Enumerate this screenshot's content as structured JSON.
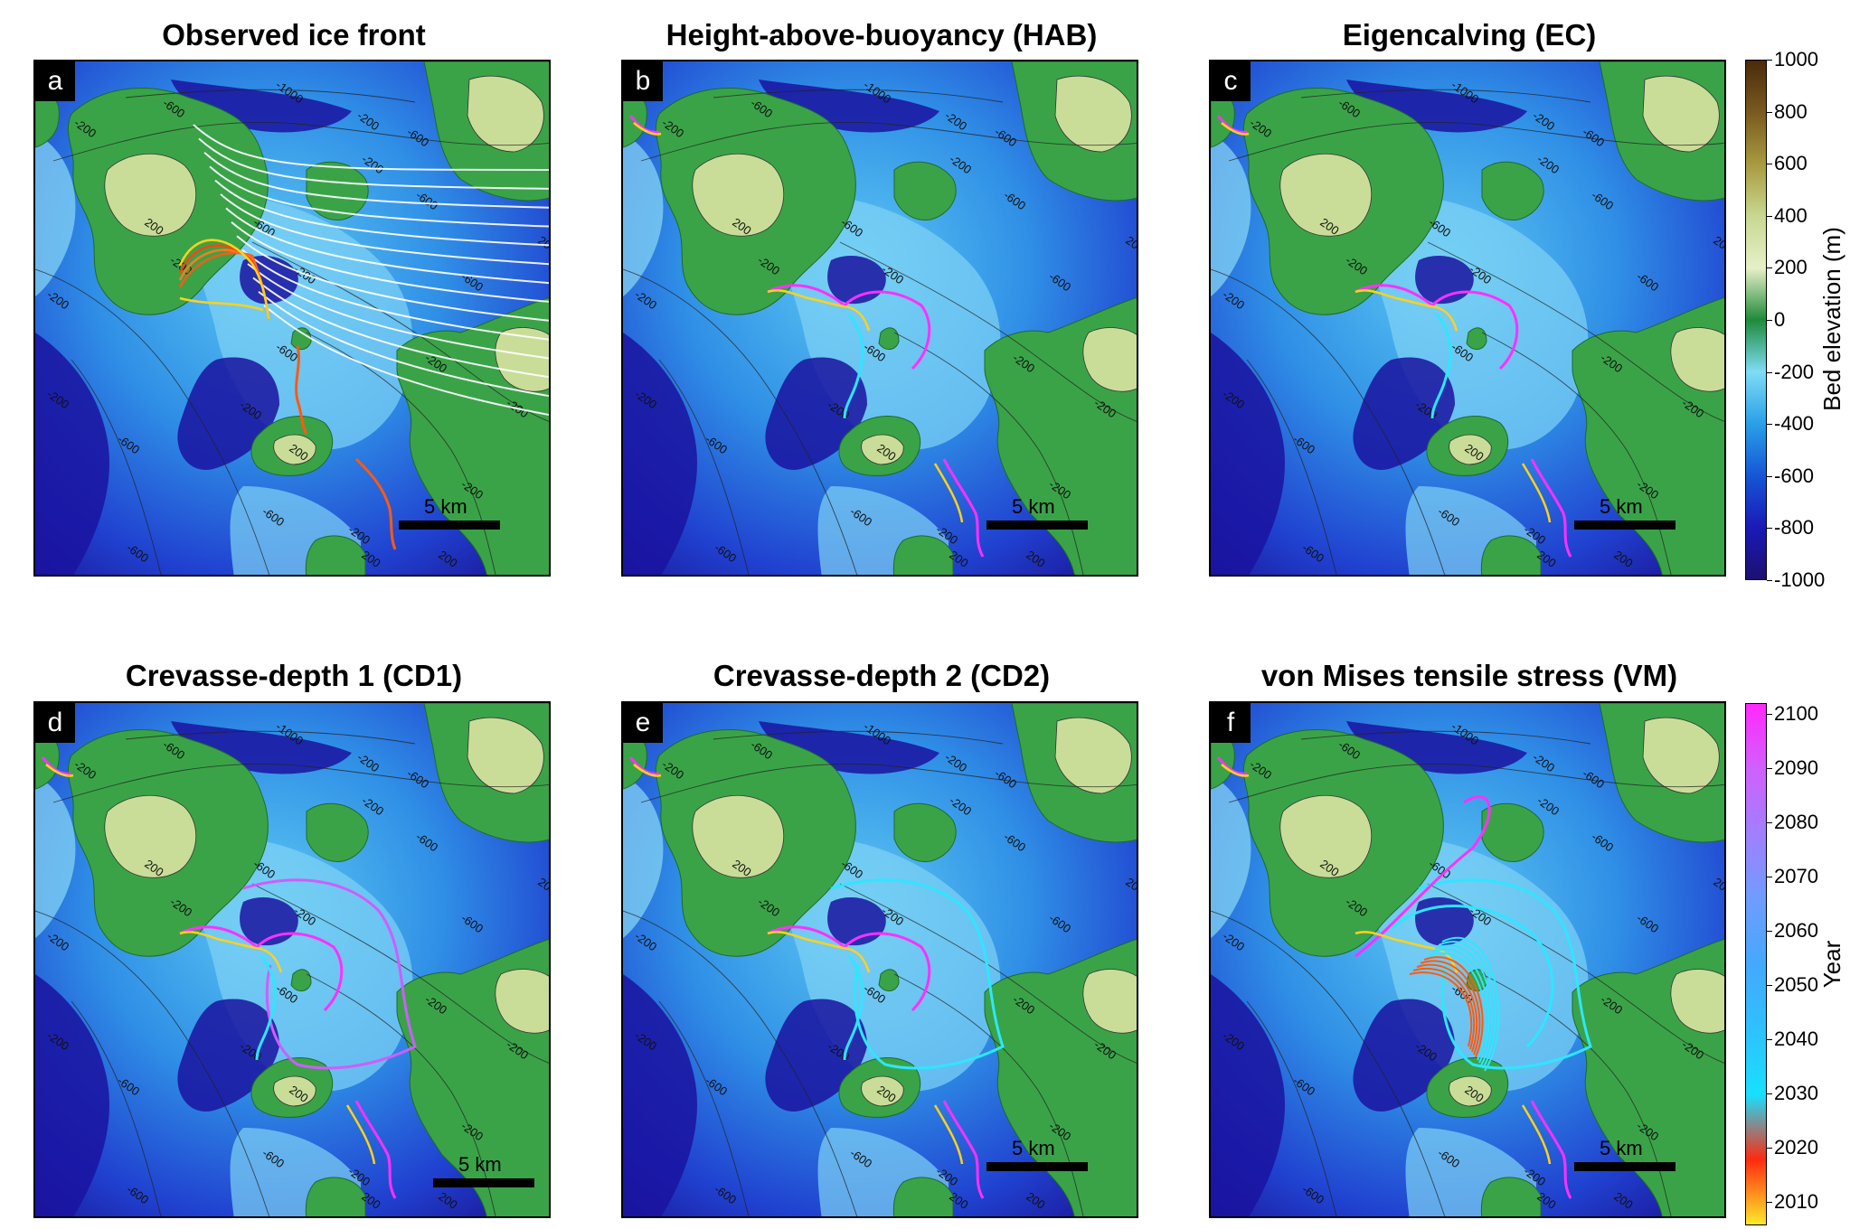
{
  "panels": [
    {
      "letter": "a",
      "title": "Observed ice front",
      "scale_label": "5 km"
    },
    {
      "letter": "b",
      "title": "Height-above-buoyancy (HAB)",
      "scale_label": "5 km"
    },
    {
      "letter": "c",
      "title": "Eigencalving (EC)",
      "scale_label": "5 km"
    },
    {
      "letter": "d",
      "title": "Crevasse-depth 1 (CD1)",
      "scale_label": "5 km"
    },
    {
      "letter": "e",
      "title": "Crevasse-depth 2 (CD2)",
      "scale_label": "5 km"
    },
    {
      "letter": "f",
      "title": "von Mises tensile stress (VM)",
      "scale_label": "5 km"
    }
  ],
  "contour_labels": [
    "-1000",
    "-600",
    "-200",
    "200"
  ],
  "bed_colorbar": {
    "label": "Bed elevation (m)",
    "ticks": [
      "1000",
      "800",
      "600",
      "400",
      "200",
      "0",
      "-200",
      "-400",
      "-600",
      "-800",
      "-1000"
    ],
    "colors": [
      "#4a2a0a",
      "#7a5a20",
      "#a89a40",
      "#c8d890",
      "#e6f0c8",
      "#1f8a3a",
      "#7fdcf4",
      "#2aa0e8",
      "#1656d6",
      "#1a1ab8",
      "#1c1070"
    ]
  },
  "year_colorbar": {
    "label": "Year",
    "ticks": [
      "2100",
      "2090",
      "2080",
      "2070",
      "2060",
      "2050",
      "2040",
      "2030",
      "2020",
      "2010"
    ],
    "colors": [
      "#ff28ff",
      "#d060ff",
      "#a080ff",
      "#6f9cff",
      "#44a8ff",
      "#2fc0ff",
      "#18e0ff",
      "#ff2a10",
      "#ffea2a"
    ]
  },
  "colors": {
    "front_early": "#ffd21a",
    "front_mid": "#ff5a10",
    "front_late": "#ff30ff",
    "front_cyan": "#2ee6ff",
    "flowline": "#ffffff"
  }
}
